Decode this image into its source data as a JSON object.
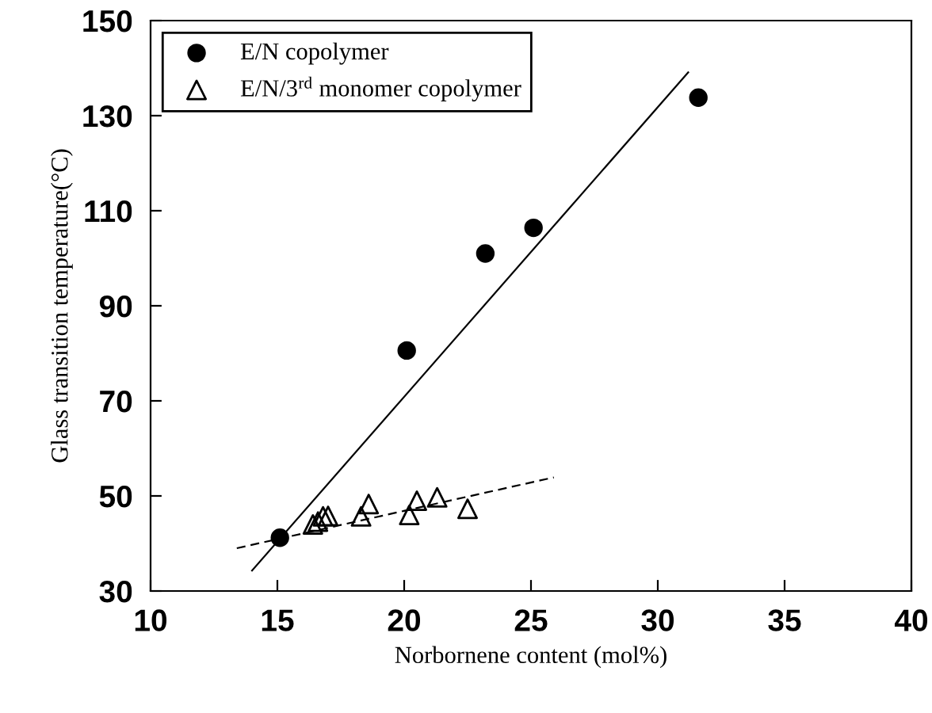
{
  "chart_data": {
    "type": "scatter",
    "xlabel": "Norbornene content (mol%)",
    "ylabel": "Glass transition temperature(°C)",
    "xlim": [
      10,
      40
    ],
    "ylim": [
      30,
      150
    ],
    "xticks": [
      10,
      15,
      20,
      25,
      30,
      35,
      40
    ],
    "yticks": [
      30,
      50,
      70,
      90,
      110,
      130,
      150
    ],
    "grid": false,
    "legend": "top left",
    "series": [
      {
        "name": "E/N copolymer",
        "marker": "circle",
        "color": "#000000",
        "x": [
          15.1,
          20.1,
          23.2,
          25.1,
          31.6
        ],
        "values": [
          41.2,
          80.6,
          101,
          106.4,
          133.8
        ]
      },
      {
        "name": "E/N/3$^{rd}$ monomer copolymer",
        "marker": "triangle",
        "color": "#000000",
        "x": [
          16.4,
          16.6,
          16.8,
          17.0,
          18.3,
          18.6,
          20.2,
          20.5,
          21.3,
          22.5
        ],
        "values": [
          44,
          44.6,
          45.7,
          45.8,
          45.7,
          48.3,
          46,
          49,
          49.7,
          47.3
        ]
      },
      {
        "type": "line",
        "line_style": "solid",
        "color": "#000000",
        "x": [
          14.0,
          31.2
        ],
        "values": [
          34.3,
          139.1
        ]
      },
      {
        "type": "line",
        "line_style": "dashed",
        "color": "#000000",
        "x": [
          13.4,
          25.9
        ],
        "values": [
          39.0,
          53.9
        ]
      }
    ]
  }
}
